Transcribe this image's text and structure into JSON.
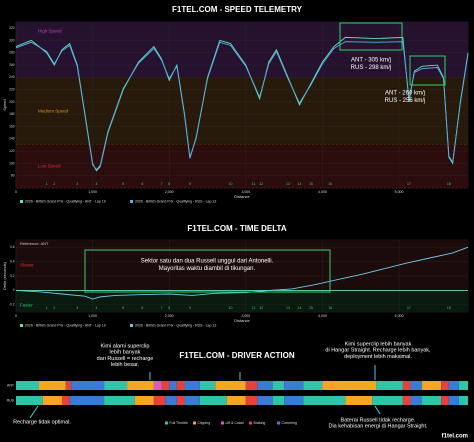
{
  "chart_data": [
    {
      "type": "line",
      "title": "F1TEL.COM - SPEED TELEMETRY",
      "xlabel": "Distance",
      "ylabel": "Speed",
      "x": [
        0,
        200,
        400,
        500,
        600,
        700,
        800,
        900,
        1000,
        1050,
        1100,
        1200,
        1400,
        1600,
        1800,
        1900,
        2000,
        2100,
        2200,
        2270,
        2350,
        2500,
        2660,
        2800,
        3000,
        3180,
        3300,
        3400,
        3550,
        3700,
        3850,
        4000,
        4150,
        4300,
        4700,
        5050,
        5130,
        5200,
        5300,
        5500,
        5580,
        5650,
        5700,
        5800,
        5900
      ],
      "series": [
        {
          "name": "2026 - British Grand Prix - Qualifying - ANT - Lap 19",
          "color": "#5fe0b8",
          "values": [
            290,
            300,
            280,
            260,
            285,
            295,
            260,
            180,
            100,
            88,
            95,
            150,
            220,
            265,
            290,
            270,
            235,
            260,
            180,
            110,
            140,
            240,
            300,
            295,
            260,
            205,
            265,
            285,
            240,
            195,
            230,
            265,
            290,
            305,
            303,
            305,
            200,
            250,
            258,
            260,
            240,
            110,
            100,
            200,
            280
          ]
        },
        {
          "name": "2026 - British Grand Prix - Qualifying - RUS - Lap 13",
          "color": "#5aaee8",
          "values": [
            288,
            297,
            282,
            262,
            283,
            292,
            258,
            178,
            98,
            90,
            97,
            152,
            222,
            263,
            287,
            268,
            238,
            258,
            178,
            108,
            142,
            238,
            297,
            292,
            258,
            208,
            262,
            282,
            238,
            198,
            228,
            262,
            287,
            298,
            297,
            298,
            205,
            248,
            254,
            256,
            238,
            112,
            102,
            198,
            278
          ]
        }
      ],
      "xlim": [
        0,
        5900
      ],
      "xticks": [
        0,
        {
          "value": 1000,
          "label": "1,000"
        },
        {
          "value": 2000,
          "label": "2,000"
        },
        {
          "value": 3000,
          "label": "3,000"
        },
        {
          "value": 4000,
          "label": "4,000"
        },
        {
          "value": 5000,
          "label": "5,000"
        }
      ],
      "ylim": [
        60,
        330
      ],
      "yticks": [
        80,
        100,
        120,
        140,
        160,
        180,
        200,
        220,
        240,
        260,
        280,
        300,
        320
      ],
      "grid": true,
      "zones": [
        {
          "label": "High Speed",
          "from": 240,
          "to": 330,
          "color": "#26122f",
          "text_color": "#c040c0"
        },
        {
          "label": "Medium Speed",
          "from": 130,
          "to": 240,
          "color": "#281a0a",
          "text_color": "#e08a20"
        },
        {
          "label": "Low Speed",
          "from": 60,
          "to": 130,
          "color": "#2c0c0c",
          "text_color": "#e03030"
        }
      ],
      "turns": {
        "labels": [
          1,
          2,
          3,
          4,
          5,
          6,
          7,
          8,
          9,
          10,
          11,
          12,
          13,
          14,
          15,
          16,
          17,
          18
        ],
        "x": [
          400,
          500,
          800,
          1050,
          1400,
          1650,
          1900,
          2000,
          2270,
          2800,
          3100,
          3200,
          3550,
          3700,
          3850,
          4100,
          5130,
          5650
        ],
        "color": "#2fd070"
      },
      "annotations": [
        [
          "ANT - 305 km/j",
          "RUS - 298 km/j"
        ],
        [
          "ANT - 260 km/j",
          "RUS - 256 km/j"
        ]
      ]
    },
    {
      "type": "line",
      "title": "F1TEL.COM - TIME DELTA",
      "xlabel": "Distance",
      "ylabel": "Delta (seconds)",
      "x": [
        0,
        300,
        600,
        900,
        1000,
        1100,
        1300,
        1600,
        2000,
        2300,
        2600,
        3000,
        3300,
        3600,
        3900,
        4200,
        4500,
        4800,
        5100,
        5400,
        5700,
        5900
      ],
      "series": [
        {
          "name": "2026 - British Grand Prix - Qualifying - ANT - Lap 19",
          "color": "#5fe0b8",
          "values": [
            0,
            0,
            0,
            0,
            0,
            0,
            0,
            0,
            0,
            0,
            0,
            0,
            0,
            0,
            0,
            0,
            0,
            0,
            0,
            0,
            0,
            0
          ]
        },
        {
          "name": "2026 - British Grand Prix - Qualifying - RUS - Lap 13",
          "color": "#6ec6e8",
          "values": [
            0,
            -0.02,
            -0.05,
            -0.08,
            -0.12,
            -0.09,
            -0.07,
            -0.06,
            -0.05,
            -0.07,
            -0.04,
            -0.03,
            0,
            0.02,
            0.08,
            0.15,
            0.22,
            0.3,
            0.38,
            0.45,
            0.52,
            0.6
          ]
        }
      ],
      "xlim": [
        0,
        5900
      ],
      "xticks": [
        0,
        {
          "value": 1000,
          "label": "1,000"
        },
        {
          "value": 2000,
          "label": "2,000"
        },
        {
          "value": 3000,
          "label": "3,000"
        },
        {
          "value": 4000,
          "label": "4,000"
        },
        {
          "value": 5000,
          "label": "5,000"
        }
      ],
      "ylim": [
        -0.3,
        0.7
      ],
      "yticks": [
        -0.2,
        0,
        0.2,
        0.4,
        0.6
      ],
      "grid": true,
      "reference_label": "Reference: ANT",
      "slower_label": "Slower",
      "faster_label": "Faster",
      "turns": {
        "labels": [
          1,
          2,
          3,
          4,
          5,
          6,
          7,
          8,
          9,
          10,
          11,
          12,
          13,
          14,
          15,
          16,
          17,
          18
        ],
        "x": [
          400,
          500,
          800,
          1050,
          1400,
          1650,
          1900,
          2000,
          2270,
          2800,
          3100,
          3200,
          3550,
          3700,
          3850,
          4100,
          5130,
          5650
        ],
        "color": "#2fd070"
      },
      "annotations": [
        [
          "Sektor satu dan dua Russell unggul dari Antonelli.",
          "Mayoritas waktu diambil di tikungan."
        ]
      ]
    },
    {
      "type": "timeline",
      "title": "F1TEL.COM - DRIVER ACTION",
      "xlim": [
        0,
        5900
      ],
      "actions": [
        {
          "name": "Full Throttle",
          "color": "#2fc6a8"
        },
        {
          "name": "Clipping",
          "color": "#f5a623"
        },
        {
          "name": "Lift & Coast",
          "color": "#e056c8"
        },
        {
          "name": "Braking",
          "color": "#e8413c"
        },
        {
          "name": "Cornering",
          "color": "#3a7bd5"
        }
      ],
      "rows": [
        {
          "name": "ANT",
          "segments": [
            {
              "action": "Full Throttle",
              "start": 0,
              "end": 300
            },
            {
              "action": "Clipping",
              "start": 300,
              "end": 650
            },
            {
              "action": "Braking",
              "start": 650,
              "end": 720
            },
            {
              "action": "Cornering",
              "start": 720,
              "end": 1150
            },
            {
              "action": "Full Throttle",
              "start": 1150,
              "end": 1450
            },
            {
              "action": "Clipping",
              "start": 1450,
              "end": 1800
            },
            {
              "action": "Lift & Coast",
              "start": 1800,
              "end": 1900
            },
            {
              "action": "Braking",
              "start": 1900,
              "end": 2000
            },
            {
              "action": "Cornering",
              "start": 2000,
              "end": 2100
            },
            {
              "action": "Braking",
              "start": 2100,
              "end": 2200
            },
            {
              "action": "Cornering",
              "start": 2200,
              "end": 2400
            },
            {
              "action": "Full Throttle",
              "start": 2400,
              "end": 2600
            },
            {
              "action": "Clipping",
              "start": 2600,
              "end": 3000
            },
            {
              "action": "Braking",
              "start": 3000,
              "end": 3150
            },
            {
              "action": "Cornering",
              "start": 3150,
              "end": 3350
            },
            {
              "action": "Full Throttle",
              "start": 3350,
              "end": 3500
            },
            {
              "action": "Cornering",
              "start": 3500,
              "end": 3750
            },
            {
              "action": "Full Throttle",
              "start": 3750,
              "end": 4000
            },
            {
              "action": "Clipping",
              "start": 4000,
              "end": 4700
            },
            {
              "action": "Full Throttle",
              "start": 4700,
              "end": 5050
            },
            {
              "action": "Braking",
              "start": 5050,
              "end": 5150
            },
            {
              "action": "Cornering",
              "start": 5150,
              "end": 5300
            },
            {
              "action": "Clipping",
              "start": 5300,
              "end": 5550
            },
            {
              "action": "Braking",
              "start": 5550,
              "end": 5650
            },
            {
              "action": "Cornering",
              "start": 5650,
              "end": 5780
            },
            {
              "action": "Full Throttle",
              "start": 5780,
              "end": 5900
            }
          ]
        },
        {
          "name": "RUS",
          "segments": [
            {
              "action": "Full Throttle",
              "start": 0,
              "end": 350
            },
            {
              "action": "Clipping",
              "start": 350,
              "end": 600
            },
            {
              "action": "Braking",
              "start": 600,
              "end": 700
            },
            {
              "action": "Cornering",
              "start": 700,
              "end": 1150
            },
            {
              "action": "Full Throttle",
              "start": 1150,
              "end": 1550
            },
            {
              "action": "Clipping",
              "start": 1550,
              "end": 1800
            },
            {
              "action": "Braking",
              "start": 1800,
              "end": 1950
            },
            {
              "action": "Cornering",
              "start": 1950,
              "end": 2100
            },
            {
              "action": "Braking",
              "start": 2100,
              "end": 2200
            },
            {
              "action": "Cornering",
              "start": 2200,
              "end": 2400
            },
            {
              "action": "Full Throttle",
              "start": 2400,
              "end": 2750
            },
            {
              "action": "Clipping",
              "start": 2750,
              "end": 3000
            },
            {
              "action": "Braking",
              "start": 3000,
              "end": 3150
            },
            {
              "action": "Cornering",
              "start": 3150,
              "end": 3350
            },
            {
              "action": "Full Throttle",
              "start": 3350,
              "end": 3500
            },
            {
              "action": "Cornering",
              "start": 3500,
              "end": 3750
            },
            {
              "action": "Full Throttle",
              "start": 3750,
              "end": 4300
            },
            {
              "action": "Clipping",
              "start": 4300,
              "end": 4650
            },
            {
              "action": "Full Throttle",
              "start": 4650,
              "end": 5050
            },
            {
              "action": "Braking",
              "start": 5050,
              "end": 5150
            },
            {
              "action": "Cornering",
              "start": 5150,
              "end": 5300
            },
            {
              "action": "Full Throttle",
              "start": 5300,
              "end": 5550
            },
            {
              "action": "Braking",
              "start": 5550,
              "end": 5650
            },
            {
              "action": "Cornering",
              "start": 5650,
              "end": 5780
            },
            {
              "action": "Full Throttle",
              "start": 5780,
              "end": 5900
            }
          ]
        }
      ],
      "annotations": [
        [
          "Kimi alami superclip",
          "lebih banyak",
          "dari Russell = recharge",
          "lebih besar."
        ],
        [
          "Kimi superclip lebih banyak",
          "di Hangar Straight. Recharge lebih banyak,",
          "deployment lebih maksimal."
        ],
        [
          "Recharge tidak optimal."
        ],
        [
          "Baterai Russell tidak recharge.",
          "Dia kehabisan energi di Hangar Straight."
        ]
      ],
      "watermark": "f1tel.com"
    }
  ]
}
